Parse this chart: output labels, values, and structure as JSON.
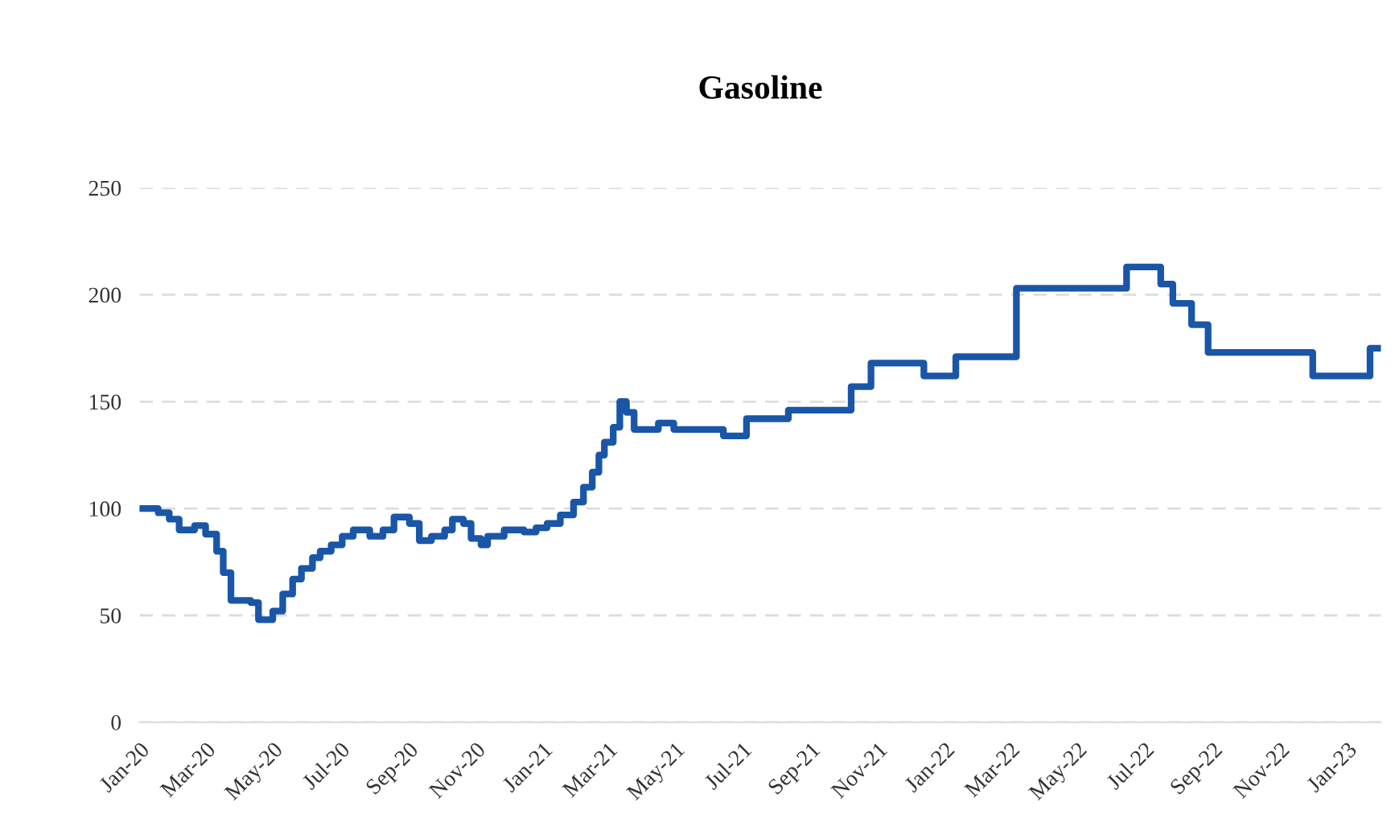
{
  "chart_data": {
    "type": "step",
    "title": "Gasoline",
    "x": [
      "2020-01-01",
      "2020-01-18",
      "2020-01-28",
      "2020-02-06",
      "2020-02-20",
      "2020-03-01",
      "2020-03-11",
      "2020-03-17",
      "2020-03-24",
      "2020-04-11",
      "2020-04-18",
      "2020-05-01",
      "2020-05-10",
      "2020-05-19",
      "2020-05-27",
      "2020-06-06",
      "2020-06-13",
      "2020-06-23",
      "2020-07-03",
      "2020-07-13",
      "2020-07-28",
      "2020-08-09",
      "2020-08-19",
      "2020-09-02",
      "2020-09-11",
      "2020-09-22",
      "2020-10-04",
      "2020-10-11",
      "2020-10-21",
      "2020-10-28",
      "2020-11-06",
      "2020-11-12",
      "2020-11-27",
      "2020-12-15",
      "2020-12-26",
      "2021-01-05",
      "2021-01-17",
      "2021-01-29",
      "2021-02-07",
      "2021-02-15",
      "2021-02-21",
      "2021-02-26",
      "2021-03-06",
      "2021-03-12",
      "2021-03-18",
      "2021-03-25",
      "2021-04-16",
      "2021-04-30",
      "2021-06-14",
      "2021-07-05",
      "2021-08-12",
      "2021-10-08",
      "2021-10-26",
      "2021-12-13",
      "2022-01-11",
      "2022-03-07",
      "2022-06-15",
      "2022-07-16",
      "2022-07-27",
      "2022-08-13",
      "2022-08-28",
      "2022-12-01",
      "2023-01-22",
      "2023-01-29"
    ],
    "series": [
      {
        "color": "#1a56a8",
        "values": [
          100,
          98,
          95,
          90,
          92,
          88,
          80,
          70,
          57,
          56,
          48,
          52,
          60,
          67,
          72,
          77,
          80,
          83,
          87,
          90,
          87,
          90,
          96,
          93,
          85,
          87,
          90,
          95,
          93,
          86,
          83,
          87,
          90,
          89,
          91,
          93,
          97,
          103,
          110,
          117,
          125,
          131,
          138,
          150,
          145,
          137,
          140,
          137,
          134,
          142,
          146,
          157,
          168,
          162,
          171,
          203,
          213,
          205,
          196,
          186,
          173,
          162,
          175,
          175
        ]
      }
    ],
    "xlim": [
      "2020-01-01",
      "2023-02-01"
    ],
    "xticks": [
      {
        "value": "2020-01-01",
        "label": "Jan-20"
      },
      {
        "value": "2020-03-01",
        "label": "Mar-20"
      },
      {
        "value": "2020-05-01",
        "label": "May-20"
      },
      {
        "value": "2020-07-01",
        "label": "Jul-20"
      },
      {
        "value": "2020-09-01",
        "label": "Sep-20"
      },
      {
        "value": "2020-11-01",
        "label": "Nov-20"
      },
      {
        "value": "2021-01-01",
        "label": "Jan-21"
      },
      {
        "value": "2021-03-01",
        "label": "Mar-21"
      },
      {
        "value": "2021-05-01",
        "label": "May-21"
      },
      {
        "value": "2021-07-01",
        "label": "Jul-21"
      },
      {
        "value": "2021-09-01",
        "label": "Sep-21"
      },
      {
        "value": "2021-11-01",
        "label": "Nov-21"
      },
      {
        "value": "2022-01-01",
        "label": "Jan-22"
      },
      {
        "value": "2022-03-01",
        "label": "Mar-22"
      },
      {
        "value": "2022-05-01",
        "label": "May-22"
      },
      {
        "value": "2022-07-01",
        "label": "Jul-22"
      },
      {
        "value": "2022-09-01",
        "label": "Sep-22"
      },
      {
        "value": "2022-11-01",
        "label": "Nov-22"
      },
      {
        "value": "2023-01-01",
        "label": "Jan-23"
      }
    ],
    "ylim": [
      0,
      250
    ],
    "yticks": [
      0,
      50,
      100,
      150,
      200,
      250
    ],
    "grid": "y",
    "line_style": "solid"
  }
}
